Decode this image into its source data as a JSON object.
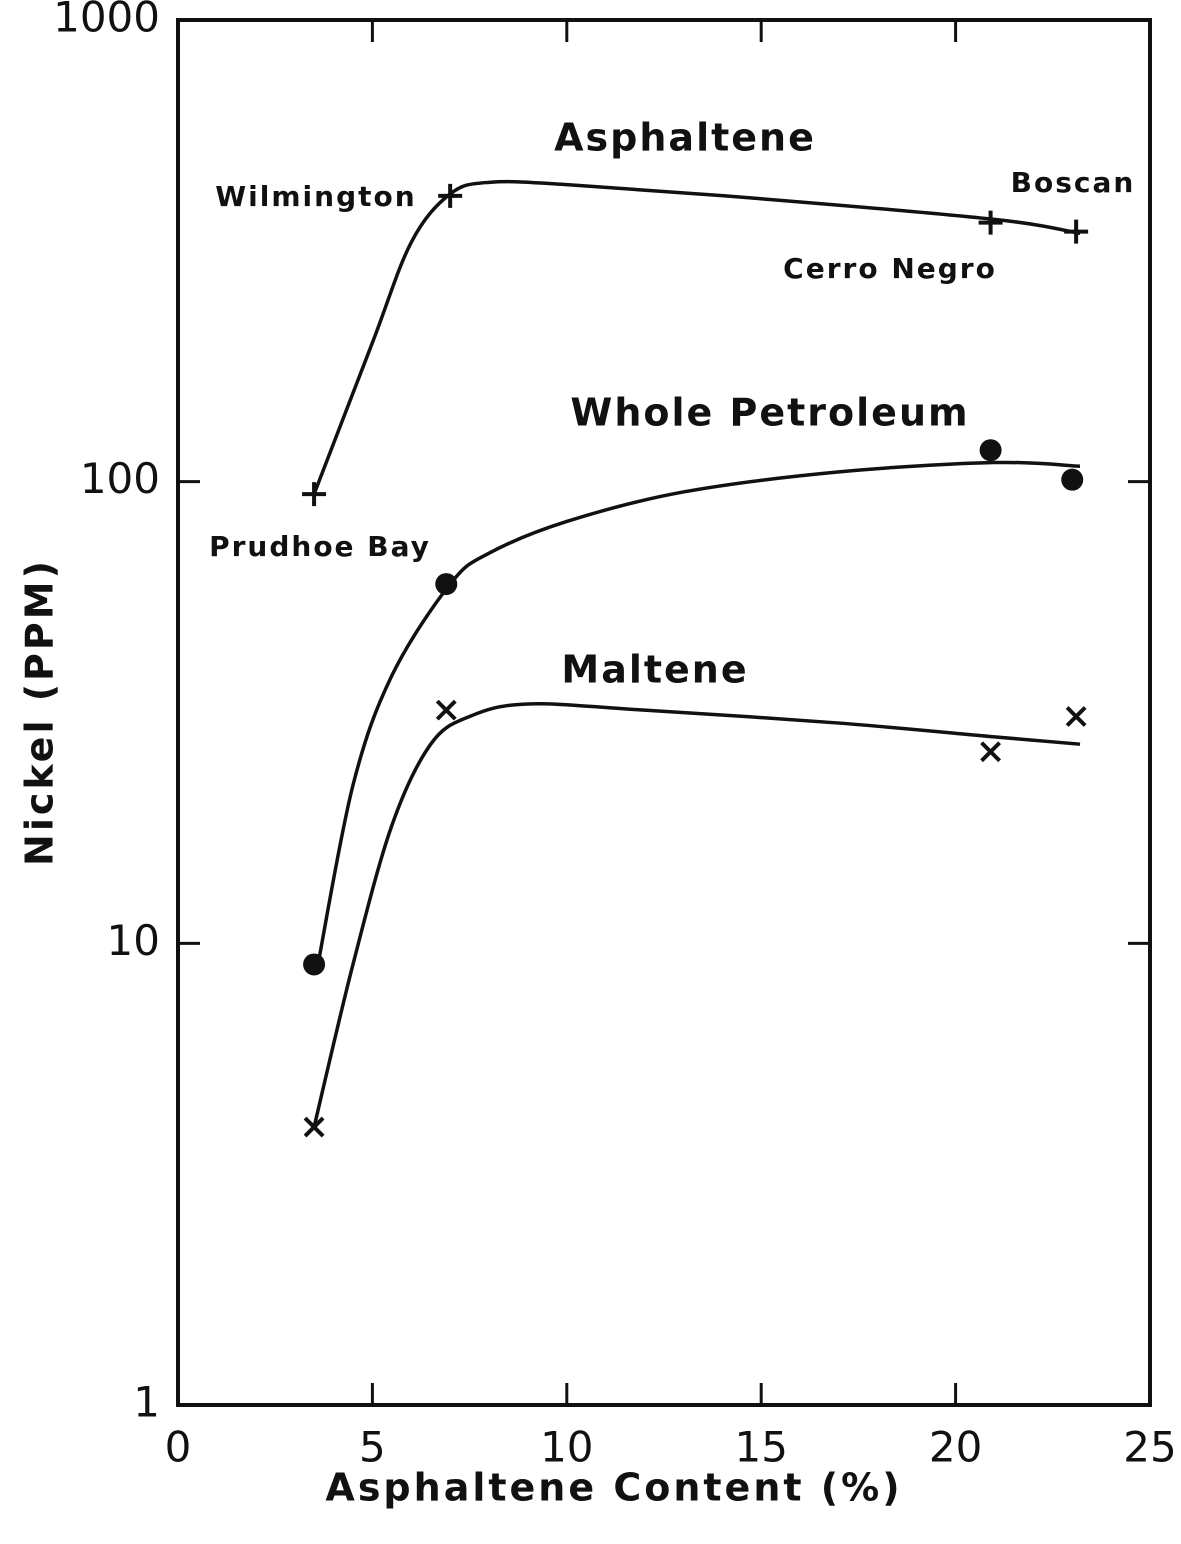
{
  "chart_data": {
    "type": "scatter",
    "x_label": "Asphaltene Content (%)",
    "y_label": "Nickel (PPM)",
    "xlim": [
      0,
      25
    ],
    "xticks": [
      0,
      5,
      10,
      15,
      20,
      25
    ],
    "ylim": [
      1,
      1000
    ],
    "yticks": [
      1,
      10,
      100,
      1000
    ],
    "log_y": true,
    "grid": false,
    "annotations": [
      "Prudhoe Bay",
      "Wilmington",
      "Cerro Negro",
      "Boscan"
    ],
    "series": [
      {
        "name": "Asphaltene",
        "color": "#111111",
        "marker": "plus",
        "x": [
          3.5,
          7.0,
          20.9,
          23.1
        ],
        "values": [
          94,
          416,
          364,
          348
        ],
        "curve_x": [
          3.5,
          5,
          6,
          7,
          8,
          10,
          15,
          21,
          23.2
        ],
        "curve_y": [
          94,
          200,
          330,
          420,
          445,
          440,
          410,
          370,
          345
        ]
      },
      {
        "name": "Whole Petroleum",
        "color": "#111111",
        "marker": "circle",
        "x": [
          3.5,
          6.9,
          20.9,
          23.0
        ],
        "values": [
          9.0,
          60,
          117,
          101
        ],
        "curve_x": [
          3.6,
          4.5,
          5.5,
          7,
          8,
          10,
          13,
          17,
          21,
          23.2
        ],
        "curve_y": [
          9,
          22,
          38,
          60,
          70,
          82,
          95,
          105,
          110,
          108
        ]
      },
      {
        "name": "Maltene",
        "color": "#111111",
        "marker": "x",
        "x": [
          3.5,
          6.9,
          20.9,
          23.1
        ],
        "values": [
          4.0,
          32,
          26,
          31
        ],
        "curve_x": [
          3.5,
          4.5,
          5.5,
          6.5,
          7.5,
          9,
          12,
          17,
          21,
          23.2
        ],
        "curve_y": [
          4,
          9,
          18,
          27,
          31,
          33,
          32,
          30,
          28,
          27
        ]
      }
    ]
  }
}
